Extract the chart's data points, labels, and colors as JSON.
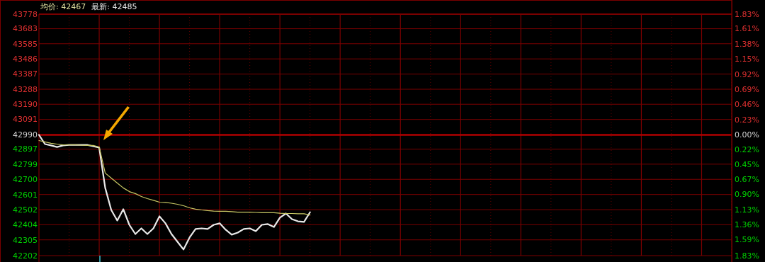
{
  "chart_data": {
    "type": "line",
    "title": "均价: 42467",
    "subtitle": "最新: 42485",
    "categories": [
      null,
      null,
      null,
      null,
      null,
      null,
      null,
      null,
      null,
      null,
      null,
      null,
      null,
      null,
      null,
      null,
      null,
      null,
      null,
      null,
      null,
      null,
      null,
      null,
      null,
      null,
      null,
      null,
      null,
      null,
      null,
      null,
      null,
      null,
      null,
      null,
      null,
      null,
      null,
      null,
      null,
      null,
      null,
      null,
      null,
      null,
      null,
      null,
      null,
      null,
      null,
      null,
      null,
      null,
      null,
      null,
      null,
      null,
      null,
      null,
      null,
      null,
      null,
      null,
      null,
      null,
      null,
      null,
      null,
      null,
      null,
      null,
      null,
      null,
      null,
      null,
      null,
      null,
      null,
      null,
      null,
      null,
      null,
      null,
      null,
      null,
      null,
      null,
      null,
      null,
      null,
      null,
      null,
      null,
      null,
      null,
      null,
      null,
      null,
      null,
      null,
      null,
      null,
      null,
      null,
      null,
      null,
      null,
      null,
      null,
      null,
      null,
      null,
      null,
      null,
      null
    ],
    "series": [
      {
        "color": "#e8e8e8",
        "values": [
          42990,
          42930,
          42921,
          42911,
          42921,
          42925,
          42925,
          42925,
          42925,
          42916,
          42907,
          42644,
          42500,
          42431,
          42505,
          42403,
          42343,
          42380,
          42343,
          42380,
          42459,
          42413,
          42343,
          42292,
          42242,
          42320,
          42376,
          42380,
          42376,
          42403,
          42413,
          42371,
          42339,
          42352,
          42376,
          42380,
          42362,
          42403,
          42408,
          42389,
          42450,
          42477,
          42440,
          42426,
          42422,
          42485,
          null,
          null,
          null,
          null,
          null,
          null,
          null,
          null,
          null,
          null,
          null,
          null,
          null,
          null,
          null,
          null,
          null,
          null,
          null,
          null,
          null,
          null,
          null,
          null,
          null,
          null,
          null,
          null,
          null,
          null,
          null,
          null,
          null,
          null,
          null,
          null,
          null,
          null,
          null,
          null,
          null,
          null,
          null,
          null,
          null,
          null,
          null,
          null,
          null,
          null,
          null,
          null,
          null,
          null,
          null,
          null,
          null,
          null,
          null,
          null,
          null,
          null,
          null,
          null,
          null,
          null,
          null,
          null,
          null,
          null
        ]
      },
      {
        "color": "#c8c864",
        "values": [
          42953,
          42944,
          42935,
          42930,
          42925,
          42925,
          42925,
          42923,
          42921,
          42921,
          42911,
          42741,
          42708,
          42676,
          42644,
          42620,
          42607,
          42588,
          42574,
          42563,
          42551,
          42549,
          42544,
          42537,
          42528,
          42514,
          42505,
          42500,
          42496,
          42493,
          42491,
          42491,
          42489,
          42486,
          42486,
          42486,
          42484,
          42482,
          42482,
          42482,
          42479,
          42477,
          42477,
          42475,
          42475,
          42467,
          null,
          null,
          null,
          null,
          null,
          null,
          null,
          null,
          null,
          null,
          null,
          null,
          null,
          null,
          null,
          null,
          null,
          null,
          null,
          null,
          null,
          null,
          null,
          null,
          null,
          null,
          null,
          null,
          null,
          null,
          null,
          null,
          null,
          null,
          null,
          null,
          null,
          null,
          null,
          null,
          null,
          null,
          null,
          null,
          null,
          null,
          null,
          null,
          null,
          null,
          null,
          null,
          null,
          null,
          null,
          null,
          null,
          null,
          null,
          null,
          null,
          null,
          null,
          null,
          null,
          null,
          null,
          null,
          null,
          null
        ]
      }
    ],
    "ylim": [
      42202,
      43778
    ],
    "yticks": [
      42202,
      42305,
      42404,
      42502,
      42601,
      42700,
      42799,
      42897,
      42990,
      43091,
      43190,
      43288,
      43387,
      43486,
      43585,
      43683,
      43778
    ],
    "y2lim": [
      -1.83,
      1.83
    ],
    "y2ticks": [
      {
        "value": -1.83,
        "label": "1.83%"
      },
      {
        "value": -1.59,
        "label": "1.59%"
      },
      {
        "value": -1.36,
        "label": "1.36%"
      },
      {
        "value": -1.13,
        "label": "1.13%"
      },
      {
        "value": -0.9,
        "label": "0.90%"
      },
      {
        "value": -0.67,
        "label": "0.67%"
      },
      {
        "value": -0.45,
        "label": "0.45%"
      },
      {
        "value": -0.22,
        "label": "0.22%"
      },
      {
        "value": 0,
        "label": "0.00%"
      },
      {
        "value": 0.23,
        "label": "0.23%"
      },
      {
        "value": 0.46,
        "label": "0.46%"
      },
      {
        "value": 0.69,
        "label": "0.69%"
      },
      {
        "value": 0.92,
        "label": "0.92%"
      },
      {
        "value": 1.15,
        "label": "1.15%"
      },
      {
        "value": 1.38,
        "label": "1.38%"
      },
      {
        "value": 1.61,
        "label": "1.61%"
      },
      {
        "value": 1.83,
        "label": "1.83%"
      }
    ],
    "ref_lines": [
      {
        "axis": "y",
        "value": 42990,
        "color": "#b00000"
      }
    ],
    "grid": true,
    "tick_labels": "y",
    "line_style": "solid",
    "marker": "none"
  }
}
